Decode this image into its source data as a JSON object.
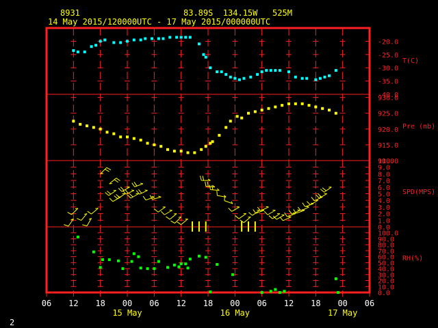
{
  "header": {
    "station_id": "8931",
    "location": "83.89S  134.15W   525M",
    "date_range": "14 May 2015/120000UTC - 17 May 2015/000000UTC"
  },
  "footer": {
    "page_number": "2"
  },
  "colors": {
    "frame": "#ff2020",
    "temperature": "#00ffff",
    "pressure": "#ffff00",
    "wind": "#ffff00",
    "humidity": "#00ff00",
    "calm_marker": "#ffff00"
  },
  "chart_data": {
    "type": "scatter",
    "x_unit": "hours from 14 May 2015 00 UTC",
    "x_range": [
      6,
      78
    ],
    "x_ticks": [
      {
        "x": 6,
        "label": "06"
      },
      {
        "x": 12,
        "label": "12"
      },
      {
        "x": 18,
        "label": "18"
      },
      {
        "x": 24,
        "label": "00"
      },
      {
        "x": 30,
        "label": "06"
      },
      {
        "x": 36,
        "label": "12"
      },
      {
        "x": 42,
        "label": "18"
      },
      {
        "x": 48,
        "label": "00"
      },
      {
        "x": 54,
        "label": "06"
      },
      {
        "x": 60,
        "label": "12"
      },
      {
        "x": 66,
        "label": "18"
      },
      {
        "x": 72,
        "label": "00"
      },
      {
        "x": 78,
        "label": "06"
      }
    ],
    "date_labels": [
      {
        "x": 24,
        "label": "15 May"
      },
      {
        "x": 48,
        "label": "16 May"
      },
      {
        "x": 72,
        "label": "17 May"
      }
    ],
    "panels": {
      "temperature": {
        "label": "T(C)",
        "ylim": [
          -40,
          -15
        ],
        "ticks": [
          -20.0,
          -25.0,
          -30.0,
          -35.0,
          -40.0
        ],
        "tick_labels": [
          "-20.0",
          "-25.0",
          "-30.0",
          "-35.0",
          "-40.0"
        ],
        "points": [
          [
            12,
            -23.5
          ],
          [
            13,
            -24.0
          ],
          [
            14.5,
            -24.0
          ],
          [
            16,
            -22.0
          ],
          [
            17,
            -21.5
          ],
          [
            18,
            -20.0
          ],
          [
            19,
            -19.5
          ],
          [
            21,
            -20.5
          ],
          [
            22.5,
            -20.5
          ],
          [
            24,
            -20.0
          ],
          [
            25.5,
            -19.5
          ],
          [
            27,
            -19.5
          ],
          [
            28,
            -19.0
          ],
          [
            29.5,
            -19.0
          ],
          [
            31,
            -19.0
          ],
          [
            32,
            -19.0
          ],
          [
            33.5,
            -18.5
          ],
          [
            35,
            -18.5
          ],
          [
            36,
            -18.5
          ],
          [
            37,
            -18.5
          ],
          [
            38,
            -18.5
          ],
          [
            40,
            -21.0
          ],
          [
            41,
            -25.0
          ],
          [
            41.5,
            -26.0
          ],
          [
            42.5,
            -30.0
          ],
          [
            44,
            -31.5
          ],
          [
            45,
            -31.5
          ],
          [
            46,
            -32.5
          ],
          [
            47,
            -33.5
          ],
          [
            48,
            -34.0
          ],
          [
            49,
            -34.5
          ],
          [
            50,
            -34.0
          ],
          [
            51.5,
            -33.5
          ],
          [
            53,
            -32.5
          ],
          [
            54,
            -31.5
          ],
          [
            55,
            -31.0
          ],
          [
            56,
            -31.0
          ],
          [
            57,
            -31.0
          ],
          [
            58,
            -31.0
          ],
          [
            60,
            -31.5
          ],
          [
            61.5,
            -33.5
          ],
          [
            63,
            -34.0
          ],
          [
            64,
            -34.0
          ],
          [
            66,
            -34.5
          ],
          [
            67,
            -34.0
          ],
          [
            68,
            -33.5
          ],
          [
            69,
            -33.0
          ],
          [
            70.5,
            -31.0
          ]
        ]
      },
      "pressure": {
        "label": "Pre (mb)",
        "ylim": [
          910,
          931
        ],
        "ticks": [
          910,
          915,
          920,
          925,
          930
        ],
        "tick_labels": [
          "910.0",
          "915.0",
          "920.0",
          "925.0",
          "930.0"
        ],
        "points": [
          [
            12,
            922.5
          ],
          [
            13.5,
            921.5
          ],
          [
            15,
            921.0
          ],
          [
            16.5,
            920.5
          ],
          [
            18,
            920.0
          ],
          [
            19.5,
            919.0
          ],
          [
            21,
            918.5
          ],
          [
            22.5,
            917.5
          ],
          [
            24,
            917.5
          ],
          [
            25.5,
            917.0
          ],
          [
            27,
            916.5
          ],
          [
            28.5,
            915.5
          ],
          [
            30,
            915.0
          ],
          [
            31.5,
            914.5
          ],
          [
            33,
            913.5
          ],
          [
            34.5,
            913.0
          ],
          [
            36,
            913.0
          ],
          [
            37.5,
            912.5
          ],
          [
            39,
            912.5
          ],
          [
            40.5,
            913.5
          ],
          [
            41.5,
            914.5
          ],
          [
            42.5,
            915.5
          ],
          [
            43,
            916.0
          ],
          [
            44.5,
            918.0
          ],
          [
            46,
            920.5
          ],
          [
            47,
            922.5
          ],
          [
            48.5,
            924.0
          ],
          [
            49.5,
            923.5
          ],
          [
            51,
            925.0
          ],
          [
            52.5,
            925.5
          ],
          [
            54,
            926.0
          ],
          [
            55.5,
            926.5
          ],
          [
            57,
            927.0
          ],
          [
            58.5,
            927.5
          ],
          [
            60,
            928.0
          ],
          [
            61.5,
            928.0
          ],
          [
            63,
            928.0
          ],
          [
            64.5,
            927.5
          ],
          [
            66,
            927.0
          ],
          [
            67.5,
            926.5
          ],
          [
            69,
            926.0
          ],
          [
            70.5,
            925.0
          ]
        ]
      },
      "wind": {
        "label": "SPD(MPS)",
        "ylim": [
          0,
          10
        ],
        "ticks": [
          0,
          1,
          2,
          3,
          4,
          5,
          6,
          7,
          8,
          9,
          10
        ],
        "tick_labels": [
          "0.0",
          "1.0",
          "2.0",
          "3.0",
          "4.0",
          "5.0",
          "6.0",
          "7.0",
          "8.0",
          "9.0",
          "10.0"
        ],
        "points": [
          [
            12,
            1.2,
            215
          ],
          [
            13,
            2.8,
            225
          ],
          [
            15,
            2.0,
            220
          ],
          [
            16,
            1.3,
            210
          ],
          [
            17.5,
            2.8,
            230
          ],
          [
            18,
            8.0,
            45
          ],
          [
            20,
            6.5,
            50
          ],
          [
            21.5,
            5.5,
            235
          ],
          [
            22.5,
            4.5,
            240
          ],
          [
            23.5,
            5.0,
            235
          ],
          [
            24.5,
            6.0,
            240
          ],
          [
            25.5,
            5.5,
            245
          ],
          [
            26.5,
            5.0,
            240
          ],
          [
            27.5,
            6.5,
            250
          ],
          [
            28.5,
            5.5,
            245
          ],
          [
            30,
            4.5,
            250
          ],
          [
            31.5,
            4.5,
            255
          ],
          [
            32.5,
            3.0,
            235
          ],
          [
            34,
            2.5,
            240
          ],
          [
            35,
            2.0,
            230
          ],
          [
            36,
            1.5,
            225
          ],
          [
            37.5,
            1.2,
            230
          ],
          [
            42.5,
            7.0,
            270
          ],
          [
            43.5,
            6.0,
            275
          ],
          [
            44.5,
            5.5,
            275
          ],
          [
            46,
            4.5,
            280
          ],
          [
            47.5,
            3.5,
            290
          ],
          [
            49,
            3.0,
            240
          ],
          [
            50.5,
            2.0,
            235
          ],
          [
            51.5,
            1.5,
            230
          ],
          [
            53.5,
            2.5,
            235
          ],
          [
            54.5,
            2.5,
            250
          ],
          [
            55.5,
            3.0,
            245
          ],
          [
            57,
            2.5,
            240
          ],
          [
            58,
            2.0,
            235
          ],
          [
            59,
            1.8,
            240
          ],
          [
            60.5,
            1.5,
            245
          ],
          [
            61.5,
            2.0,
            250
          ],
          [
            62.5,
            2.5,
            245
          ],
          [
            63.5,
            2.5,
            250
          ],
          [
            64.5,
            3.0,
            245
          ],
          [
            65.5,
            3.5,
            250
          ],
          [
            66.5,
            4.0,
            240
          ],
          [
            67.5,
            4.5,
            245
          ],
          [
            68.5,
            5.0,
            240
          ],
          [
            69.5,
            6.0,
            235
          ]
        ],
        "calm_hours": [
          38.5,
          40,
          41.5,
          49.5,
          51,
          52.5
        ]
      },
      "humidity": {
        "label": "RH(%)",
        "ylim": [
          0,
          110
        ],
        "ticks": [
          0,
          10,
          20,
          30,
          40,
          50,
          60,
          70,
          80,
          90,
          100
        ],
        "tick_labels": [
          "0.0",
          "10.0",
          "20.0",
          "30.0",
          "40.0",
          "50.0",
          "60.0",
          "70.0",
          "80.0",
          "90.0",
          "100.0"
        ],
        "points": [
          [
            13,
            93
          ],
          [
            16.5,
            68
          ],
          [
            18,
            42
          ],
          [
            18.5,
            55
          ],
          [
            20,
            55
          ],
          [
            22,
            53
          ],
          [
            23,
            40
          ],
          [
            25,
            52
          ],
          [
            25.5,
            65
          ],
          [
            26.5,
            60
          ],
          [
            27,
            41
          ],
          [
            28.5,
            40
          ],
          [
            30,
            40
          ],
          [
            31,
            52
          ],
          [
            33,
            42
          ],
          [
            34.5,
            46
          ],
          [
            35.5,
            43
          ],
          [
            36,
            48
          ],
          [
            37,
            48
          ],
          [
            37.5,
            41
          ],
          [
            38,
            56
          ],
          [
            40,
            61
          ],
          [
            41.5,
            59
          ],
          [
            42.5,
            1
          ],
          [
            44,
            47
          ],
          [
            47.5,
            30
          ],
          [
            54,
            0
          ],
          [
            56,
            2
          ],
          [
            57,
            5
          ],
          [
            58,
            0
          ],
          [
            59,
            2
          ],
          [
            70.5,
            23
          ],
          [
            71,
            0
          ]
        ]
      }
    }
  }
}
